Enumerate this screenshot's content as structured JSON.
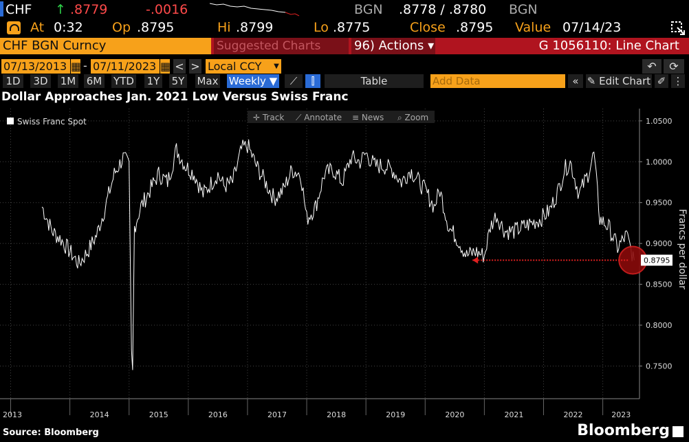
{
  "header": {
    "ticker": "CHF",
    "arrow": "↑",
    "last": ".8779",
    "change": "-.0016",
    "source1": "BGN",
    "bid_ask": ".8778 / .8780",
    "source2": "BGN",
    "at_label": "At",
    "at_time": "0:32",
    "op_label": "Op",
    "op_value": ".8795",
    "hi_label": "Hi",
    "hi_value": ".8799",
    "lo_label": "Lo",
    "lo_value": ".8775",
    "close_label": "Close",
    "close_value": ".8795",
    "value_label": "Value",
    "value_date": "07/14/23"
  },
  "toolbar": {
    "security": "CHF BGN Curncy",
    "suggested": "Suggested Charts",
    "actions_num": "96)",
    "actions": "Actions ▾",
    "function_title": "G 1056110: Line Chart"
  },
  "dates": {
    "start": "07/13/2013",
    "end": "07/11/2023",
    "currency": "Local CCY"
  },
  "ranges": [
    "1D",
    "3D",
    "1M",
    "6M",
    "YTD",
    "1Y",
    "5Y",
    "Max"
  ],
  "frequency": "Weekly ▼",
  "table_label": "Table",
  "add_data_placeholder": "Add Data",
  "edit_chart": "Edit Chart",
  "chart_title": "Dollar Approaches Jan. 2021 Low Versus Swiss Franc",
  "chart_tools": [
    "Track",
    "Annotate",
    "News",
    "Zoom"
  ],
  "source": "Source: Bloomberg",
  "brand": "Bloomberg",
  "colors": {
    "accent": "#f7a11a",
    "bar_red": "#b0141f",
    "highlight": "#cc1f1f",
    "selected": "#2a6bd6"
  },
  "chart_data": {
    "type": "line",
    "legend": "Swiss Franc Spot",
    "ylabel": "Francs per dollar",
    "ylim": [
      0.71,
      1.065
    ],
    "yticks": [
      "1.0500",
      "1.0000",
      "0.9500",
      "0.9000",
      "0.8500",
      "0.8000",
      "0.7500"
    ],
    "xticks": [
      "2013",
      "2014",
      "2015",
      "2016",
      "2017",
      "2018",
      "2019",
      "2020",
      "2021",
      "2022",
      "2023"
    ],
    "last_value_label": "0.8795",
    "x": [
      2013.53,
      2013.7,
      2013.85,
      2014.0,
      2014.15,
      2014.3,
      2014.45,
      2014.6,
      2014.75,
      2014.9,
      2015.0,
      2015.04,
      2015.06,
      2015.09,
      2015.2,
      2015.35,
      2015.5,
      2015.65,
      2015.8,
      2015.95,
      2016.1,
      2016.25,
      2016.4,
      2016.5,
      2016.6,
      2016.75,
      2016.9,
      2017.0,
      2017.15,
      2017.3,
      2017.45,
      2017.6,
      2017.75,
      2017.9,
      2018.0,
      2018.15,
      2018.3,
      2018.45,
      2018.6,
      2018.75,
      2018.9,
      2019.0,
      2019.15,
      2019.3,
      2019.45,
      2019.6,
      2019.75,
      2019.9,
      2020.0,
      2020.15,
      2020.25,
      2020.4,
      2020.55,
      2020.7,
      2020.85,
      2021.0,
      2021.1,
      2021.2,
      2021.35,
      2021.5,
      2021.65,
      2021.8,
      2021.95,
      2022.1,
      2022.25,
      2022.35,
      2022.45,
      2022.6,
      2022.75,
      2022.85,
      2022.95,
      2023.1,
      2023.25,
      2023.4,
      2023.53
    ],
    "y": [
      0.945,
      0.915,
      0.905,
      0.89,
      0.875,
      0.89,
      0.91,
      0.945,
      0.985,
      1.005,
      0.995,
      0.77,
      0.745,
      0.92,
      0.945,
      0.965,
      0.985,
      0.975,
      1.015,
      0.995,
      0.985,
      0.96,
      0.975,
      0.985,
      0.97,
      0.975,
      1.015,
      1.02,
      0.995,
      0.975,
      0.955,
      0.965,
      0.99,
      0.985,
      0.93,
      0.945,
      0.985,
      0.99,
      0.975,
      1.005,
      1.0,
      1.01,
      0.995,
      0.995,
      0.99,
      0.975,
      0.99,
      0.975,
      0.965,
      0.945,
      0.965,
      0.92,
      0.905,
      0.885,
      0.89,
      0.885,
      0.92,
      0.935,
      0.915,
      0.915,
      0.92,
      0.925,
      0.93,
      0.94,
      0.965,
      0.99,
      1.0,
      0.96,
      0.985,
      1.01,
      0.93,
      0.92,
      0.895,
      0.91,
      0.8795
    ]
  }
}
